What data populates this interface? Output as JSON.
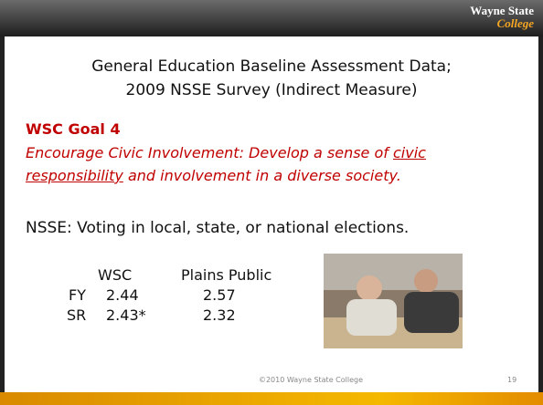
{
  "header": {
    "logo": [
      "Wayne State",
      "College"
    ]
  },
  "title": [
    "General Education Baseline Assessment Data;",
    "2009 NSSE Survey (Indirect Measure)"
  ],
  "goal": {
    "heading": "WSC Goal 4",
    "text": [
      "Encourage Civic Involvement: Develop a sense of ",
      "civic responsibility",
      " and involvement in a diverse society."
    ]
  },
  "measure": "NSSE:  Voting in local, state, or national elections.",
  "table": {
    "columns": [
      "WSC",
      "Plains Public"
    ],
    "rows": [
      [
        "FY",
        2.44,
        2.57
      ],
      [
        "SR",
        "2.43*",
        2.32
      ]
    ]
  },
  "footer": {
    "copyright": "©2010 Wayne State College",
    "page": 19
  }
}
